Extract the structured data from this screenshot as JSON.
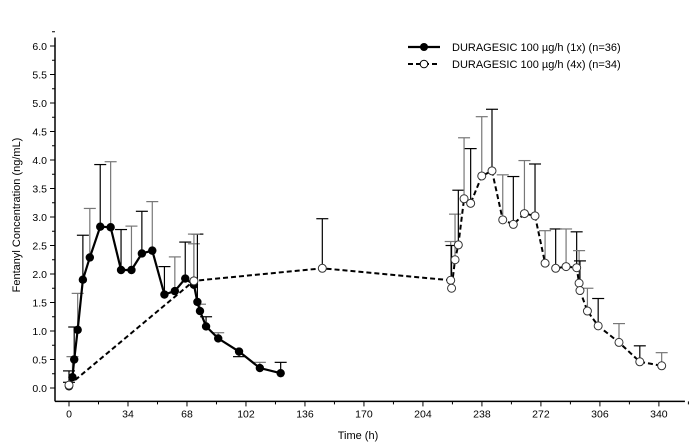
{
  "chart_data": {
    "type": "line",
    "title": "",
    "xlabel": "Time (h)",
    "ylabel": "Fentanyl Concentration (ng/mL)",
    "xlim": [
      -8,
      355
    ],
    "ylim": [
      -0.2,
      6.15
    ],
    "xticks": [
      0,
      34,
      68,
      102,
      136,
      170,
      204,
      238,
      272,
      306,
      340
    ],
    "yticks": [
      "0.0",
      "0.5",
      "1.0",
      "1.5",
      "2.0",
      "2.5",
      "3.0",
      "3.5",
      "4.0",
      "4.5",
      "5.0",
      "5.5",
      "6.0"
    ],
    "grid": false,
    "legend_placement": "top-right",
    "series": [
      {
        "name": "DURAGESIC 100 µg/h (1x) (n=36)",
        "marker": "filled-circle",
        "line": "solid",
        "x": [
          0,
          2,
          3,
          5,
          8,
          12,
          18,
          24,
          30,
          36,
          42,
          48,
          55,
          61,
          67,
          72,
          74,
          75.5,
          79,
          86,
          98,
          110,
          122
        ],
        "y": [
          0.03,
          0.19,
          0.5,
          1.02,
          1.9,
          2.29,
          2.83,
          2.82,
          2.07,
          2.07,
          2.36,
          2.41,
          1.64,
          1.7,
          1.92,
          1.81,
          1.51,
          1.35,
          1.08,
          0.87,
          0.64,
          0.35,
          0.26
        ],
        "upper": [
          0.3,
          0.55,
          1.07,
          1.66,
          2.68,
          3.15,
          3.92,
          3.97,
          2.78,
          2.84,
          3.1,
          3.27,
          2.13,
          2.3,
          2.56,
          2.53,
          2.7,
          1.47,
          1.25,
          0.97,
          0.55,
          0.45,
          0.45
        ]
      },
      {
        "name": "DURAGESIC 100 µg/h (4x) (n=34)",
        "marker": "open-circle",
        "line": "dashed",
        "x": [
          0,
          72,
          146,
          220,
          220.5,
          222.5,
          224.4,
          227.7,
          231.5,
          237.9,
          243.8,
          250,
          256.1,
          262.5,
          268.6,
          274.4,
          280.5,
          286.5,
          292.6,
          294,
          294.5,
          298.8,
          305,
          317,
          329,
          341.6
        ],
        "y": [
          0.05,
          1.88,
          2.1,
          1.89,
          1.75,
          2.25,
          2.51,
          3.32,
          3.24,
          3.72,
          3.81,
          2.95,
          2.87,
          3.06,
          3.02,
          2.19,
          2.1,
          2.13,
          2.11,
          1.84,
          1.71,
          1.35,
          1.09,
          0.8,
          0.46,
          0.39
        ],
        "upper": [
          0.1,
          2.7,
          2.97,
          2.57,
          2.5,
          3.05,
          3.47,
          4.39,
          4.2,
          4.76,
          4.89,
          3.74,
          3.71,
          3.99,
          3.93,
          2.76,
          2.79,
          2.79,
          2.74,
          2.41,
          2.23,
          1.75,
          1.57,
          1.13,
          0.74,
          0.62
        ]
      }
    ]
  }
}
